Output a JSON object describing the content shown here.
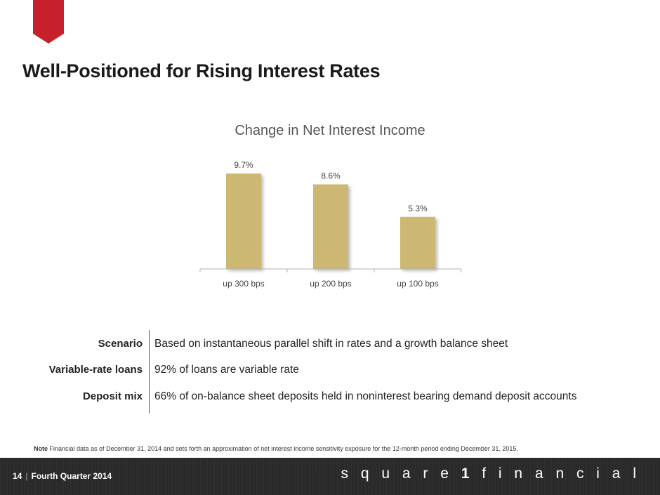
{
  "header": {
    "title": "Well-Positioned for Rising Interest Rates"
  },
  "chart_data": {
    "type": "bar",
    "title": "Change in Net Interest Income",
    "categories": [
      "up 300 bps",
      "up 200 bps",
      "up 100 bps"
    ],
    "values": [
      9.7,
      8.6,
      5.3
    ],
    "value_labels": [
      "9.7%",
      "8.6%",
      "5.3%"
    ],
    "ylim": [
      0,
      10.5
    ],
    "grid": false,
    "legend": "none",
    "bar_color": "#cdb873"
  },
  "facts": [
    {
      "label": "Scenario",
      "value": "Based on instantaneous parallel shift in rates and a growth balance sheet"
    },
    {
      "label": "Variable-rate loans",
      "value": "92% of loans are variable rate"
    },
    {
      "label": "Deposit mix",
      "value": "66% of on-balance sheet deposits held in noninterest bearing demand deposit accounts"
    }
  ],
  "note": {
    "label": "Note",
    "text": "Financial data as of December 31, 2014 and sets forth an approximation of net interest income sensitivity exposure for the 12-month period ending December 31, 2015."
  },
  "footer": {
    "page_number": "14",
    "separator": "|",
    "period": "Fourth Quarter 2014",
    "brand_prefix": "square",
    "brand_number": "1",
    "brand_suffix": "financial"
  },
  "colors": {
    "accent_red": "#c8202a",
    "bar": "#cdb873",
    "footer_bg": "#2a2a2a"
  }
}
